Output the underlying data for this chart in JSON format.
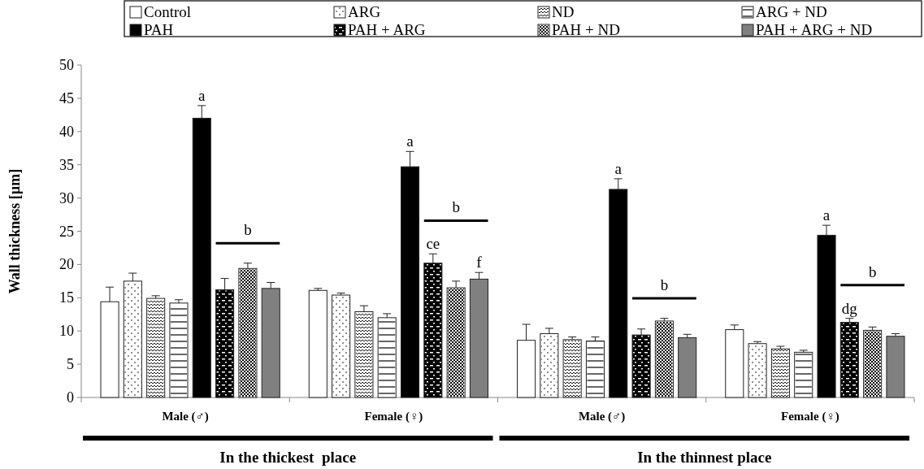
{
  "chart_data": {
    "type": "bar",
    "ylabel": "Wall thickness [µm]",
    "categories": [
      "Male (♂)",
      "Female (♀)",
      "Male (♂)",
      "Female (♀)"
    ],
    "ylim": [
      0,
      50
    ],
    "yticks": [
      0,
      5,
      10,
      15,
      20,
      25,
      30,
      35,
      40,
      45,
      50
    ],
    "legend": "top",
    "grid": false,
    "series": [
      {
        "name": "Control",
        "color": "#ffffff",
        "values": [
          14.4,
          16.1,
          8.6,
          10.2
        ],
        "errors": [
          2.2,
          0.3,
          2.4,
          0.7
        ]
      },
      {
        "name": "ARG",
        "color": "#ffffff",
        "values": [
          17.5,
          15.4,
          9.6,
          8.1
        ],
        "errors": [
          1.2,
          0.3,
          0.8,
          0.3
        ]
      },
      {
        "name": "ND",
        "color": "#ffffff",
        "values": [
          14.9,
          12.9,
          8.7,
          7.3
        ],
        "errors": [
          0.4,
          0.9,
          0.4,
          0.4
        ]
      },
      {
        "name": "ARG + ND",
        "color": "#ffffff",
        "values": [
          14.2,
          12.0,
          8.5,
          6.8
        ],
        "errors": [
          0.5,
          0.6,
          0.6,
          0.3
        ]
      },
      {
        "name": "PAH",
        "color": "#000000",
        "values": [
          42.0,
          34.7,
          31.3,
          24.4
        ],
        "errors": [
          1.9,
          2.3,
          1.6,
          1.5
        ],
        "value_labels": [
          "a",
          "a",
          "a",
          "a"
        ]
      },
      {
        "name": "PAH + ARG",
        "color": "#000000",
        "values": [
          16.2,
          20.2,
          9.4,
          11.3
        ],
        "errors": [
          1.7,
          1.4,
          0.9,
          0.6
        ],
        "value_labels": [
          null,
          "ce",
          null,
          "dg"
        ]
      },
      {
        "name": "PAH + ND",
        "color": "#ffffff",
        "values": [
          19.4,
          16.5,
          11.5,
          10.1
        ],
        "errors": [
          0.8,
          1.0,
          0.4,
          0.5
        ]
      },
      {
        "name": "PAH + ARG + ND",
        "color": "#808080",
        "values": [
          16.4,
          17.8,
          9.0,
          9.2
        ],
        "errors": [
          0.9,
          1.0,
          0.5,
          0.4
        ],
        "value_labels": [
          null,
          "f",
          null,
          null
        ]
      }
    ],
    "annotations": [
      "b",
      "b",
      "b",
      "b",
      "In the thickest  place",
      "In the thinnest place"
    ]
  }
}
